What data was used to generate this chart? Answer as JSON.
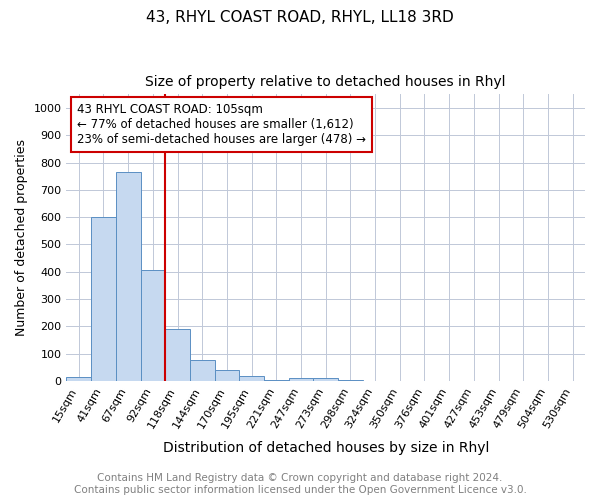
{
  "title1": "43, RHYL COAST ROAD, RHYL, LL18 3RD",
  "title2": "Size of property relative to detached houses in Rhyl",
  "xlabel": "Distribution of detached houses by size in Rhyl",
  "ylabel": "Number of detached properties",
  "categories": [
    "15sqm",
    "41sqm",
    "67sqm",
    "92sqm",
    "118sqm",
    "144sqm",
    "170sqm",
    "195sqm",
    "221sqm",
    "247sqm",
    "273sqm",
    "298sqm",
    "324sqm",
    "350sqm",
    "376sqm",
    "401sqm",
    "427sqm",
    "453sqm",
    "479sqm",
    "504sqm",
    "530sqm"
  ],
  "values": [
    15,
    600,
    765,
    405,
    190,
    78,
    40,
    18,
    5,
    12,
    10,
    5,
    0,
    0,
    0,
    0,
    0,
    0,
    0,
    0,
    0
  ],
  "bar_color": "#c6d9f0",
  "bar_edge_color": "#5a8fc3",
  "property_line_color": "#cc0000",
  "annotation_text": "43 RHYL COAST ROAD: 105sqm\n← 77% of detached houses are smaller (1,612)\n23% of semi-detached houses are larger (478) →",
  "annotation_box_color": "#ffffff",
  "annotation_box_edge_color": "#cc0000",
  "footer": "Contains HM Land Registry data © Crown copyright and database right 2024.\nContains public sector information licensed under the Open Government Licence v3.0.",
  "ylim": [
    0,
    1050
  ],
  "bg_color": "#ffffff",
  "grid_color": "#c0c8d8",
  "title1_fontsize": 11,
  "title2_fontsize": 10,
  "xlabel_fontsize": 10,
  "ylabel_fontsize": 9,
  "tick_fontsize": 8,
  "footer_fontsize": 7.5,
  "annotation_fontsize": 8.5
}
